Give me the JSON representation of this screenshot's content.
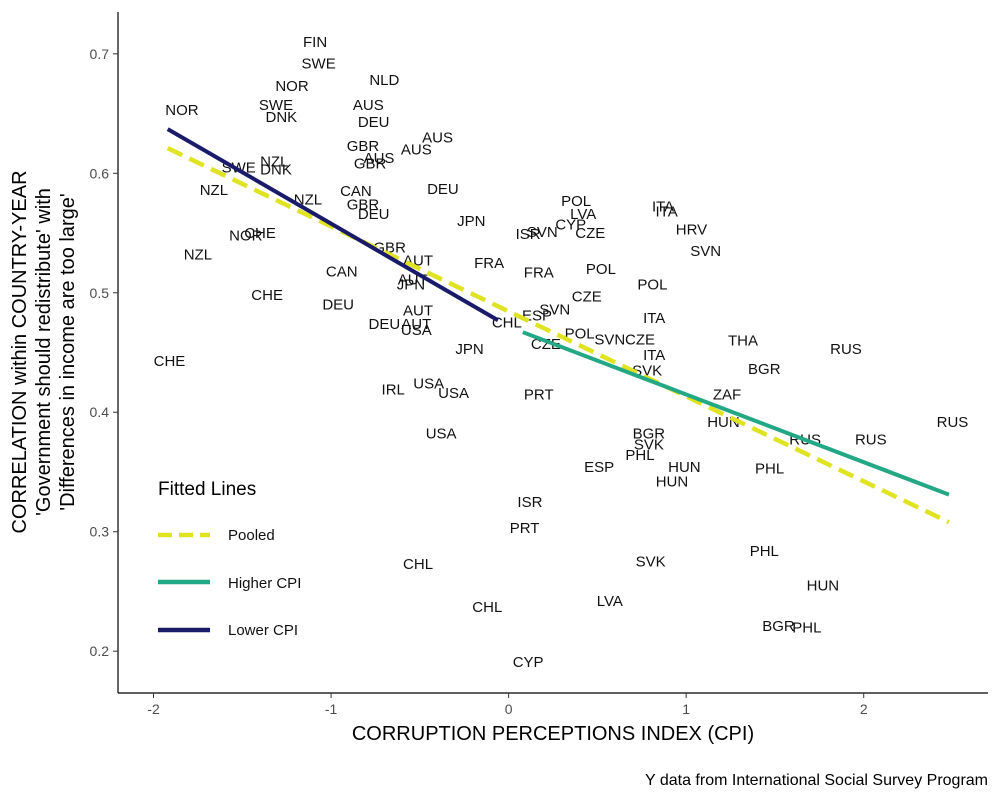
{
  "chart_data": {
    "type": "scatter",
    "xlabel": "CORRUPTION PERCEPTIONS INDEX (CPI)",
    "ylabel_lines": [
      "CORRELATION within COUNTRY-YEAR",
      "'Government should redistribute' with",
      "'Differences in income are too large'"
    ],
    "caption": "Y data from International Social Survey Program",
    "xlim": [
      -2.2,
      2.7
    ],
    "ylim": [
      0.165,
      0.735
    ],
    "x_ticks": [
      -2,
      -1,
      0,
      1,
      2
    ],
    "x_tick_labels": [
      "-2",
      "-1",
      "0",
      "1",
      "2"
    ],
    "y_ticks": [
      0.2,
      0.3,
      0.4,
      0.5,
      0.6,
      0.7
    ],
    "y_tick_labels": [
      "0.2",
      "0.3",
      "0.4",
      "0.5",
      "0.6",
      "0.7"
    ],
    "grid": false,
    "legend": {
      "title": "Fitted Lines",
      "position": "bottom-left",
      "items": [
        {
          "label": "Pooled",
          "color": "#dfe321",
          "dash": true
        },
        {
          "label": "Higher CPI",
          "color": "#22a884",
          "dash": false
        },
        {
          "label": "Lower CPI",
          "color": "#1a1a6b",
          "dash": false
        }
      ]
    },
    "lines": [
      {
        "name": "Pooled",
        "color": "#dfe321",
        "dash": true,
        "x": [
          -1.92,
          2.48
        ],
        "y": [
          0.621,
          0.308
        ]
      },
      {
        "name": "Higher CPI",
        "color": "#22a884",
        "dash": false,
        "x": [
          0.08,
          2.48
        ],
        "y": [
          0.467,
          0.331
        ]
      },
      {
        "name": "Lower CPI",
        "color": "#1a1a6b",
        "dash": false,
        "x": [
          -1.92,
          -0.06
        ],
        "y": [
          0.637,
          0.477
        ]
      }
    ],
    "points": [
      {
        "label": "FIN",
        "x": -1.09,
        "y": 0.71
      },
      {
        "label": "SWE",
        "x": -1.07,
        "y": 0.692
      },
      {
        "label": "NLD",
        "x": -0.7,
        "y": 0.678
      },
      {
        "label": "NOR",
        "x": -1.22,
        "y": 0.673
      },
      {
        "label": "NOR",
        "x": -1.84,
        "y": 0.653
      },
      {
        "label": "SWE",
        "x": -1.31,
        "y": 0.657
      },
      {
        "label": "AUS",
        "x": -0.79,
        "y": 0.657
      },
      {
        "label": "DNK",
        "x": -1.28,
        "y": 0.647
      },
      {
        "label": "DEU",
        "x": -0.76,
        "y": 0.643
      },
      {
        "label": "AUS",
        "x": -0.4,
        "y": 0.63
      },
      {
        "label": "GBR",
        "x": -0.82,
        "y": 0.623
      },
      {
        "label": "AUS",
        "x": -0.52,
        "y": 0.62
      },
      {
        "label": "AUS",
        "x": -0.73,
        "y": 0.613
      },
      {
        "label": "GBR",
        "x": -0.78,
        "y": 0.608
      },
      {
        "label": "NZL",
        "x": -1.32,
        "y": 0.61
      },
      {
        "label": "SWE",
        "x": -1.52,
        "y": 0.605
      },
      {
        "label": "DNK",
        "x": -1.31,
        "y": 0.603
      },
      {
        "label": "DEU",
        "x": -0.37,
        "y": 0.587
      },
      {
        "label": "NZL",
        "x": -1.66,
        "y": 0.586
      },
      {
        "label": "CAN",
        "x": -0.86,
        "y": 0.585
      },
      {
        "label": "NZL",
        "x": -1.13,
        "y": 0.578
      },
      {
        "label": "GBR",
        "x": -0.82,
        "y": 0.574
      },
      {
        "label": "POL",
        "x": 0.38,
        "y": 0.577
      },
      {
        "label": "ITA",
        "x": 0.87,
        "y": 0.572
      },
      {
        "label": "ITA",
        "x": 0.89,
        "y": 0.568
      },
      {
        "label": "DEU",
        "x": -0.76,
        "y": 0.566
      },
      {
        "label": "LVA",
        "x": 0.42,
        "y": 0.566
      },
      {
        "label": "JPN",
        "x": -0.21,
        "y": 0.56
      },
      {
        "label": "CYP",
        "x": 0.35,
        "y": 0.557
      },
      {
        "label": "HRV",
        "x": 1.03,
        "y": 0.553
      },
      {
        "label": "ISR",
        "x": 0.11,
        "y": 0.549
      },
      {
        "label": "SVN",
        "x": 0.19,
        "y": 0.551
      },
      {
        "label": "CZE",
        "x": 0.46,
        "y": 0.55
      },
      {
        "label": "NOR",
        "x": -1.48,
        "y": 0.548
      },
      {
        "label": "CHE",
        "x": -1.4,
        "y": 0.55
      },
      {
        "label": "GBR",
        "x": -0.67,
        "y": 0.538
      },
      {
        "label": "SVN",
        "x": 1.11,
        "y": 0.535
      },
      {
        "label": "NZL",
        "x": -1.75,
        "y": 0.532
      },
      {
        "label": "AUT",
        "x": -0.51,
        "y": 0.527
      },
      {
        "label": "FRA",
        "x": -0.11,
        "y": 0.525
      },
      {
        "label": "CAN",
        "x": -0.94,
        "y": 0.518
      },
      {
        "label": "FRA",
        "x": 0.17,
        "y": 0.517
      },
      {
        "label": "POL",
        "x": 0.52,
        "y": 0.52
      },
      {
        "label": "AUT",
        "x": -0.54,
        "y": 0.511
      },
      {
        "label": "JPN",
        "x": -0.55,
        "y": 0.507
      },
      {
        "label": "POL",
        "x": 0.81,
        "y": 0.507
      },
      {
        "label": "CHE",
        "x": -1.36,
        "y": 0.498
      },
      {
        "label": "CZE",
        "x": 0.44,
        "y": 0.497
      },
      {
        "label": "DEU",
        "x": -0.96,
        "y": 0.49
      },
      {
        "label": "AUT",
        "x": -0.51,
        "y": 0.485
      },
      {
        "label": "SVN",
        "x": 0.26,
        "y": 0.486
      },
      {
        "label": "ESP",
        "x": 0.16,
        "y": 0.481
      },
      {
        "label": "ITA",
        "x": 0.82,
        "y": 0.479
      },
      {
        "label": "CHL",
        "x": -0.01,
        "y": 0.475
      },
      {
        "label": "DEU",
        "x": -0.7,
        "y": 0.474
      },
      {
        "label": "AUT",
        "x": -0.52,
        "y": 0.474
      },
      {
        "label": "USA",
        "x": -0.52,
        "y": 0.469
      },
      {
        "label": "POL",
        "x": 0.4,
        "y": 0.466
      },
      {
        "label": "SVN",
        "x": 0.57,
        "y": 0.461
      },
      {
        "label": "CZE",
        "x": 0.74,
        "y": 0.461
      },
      {
        "label": "THA",
        "x": 1.32,
        "y": 0.46
      },
      {
        "label": "CZE",
        "x": 0.21,
        "y": 0.457
      },
      {
        "label": "JPN",
        "x": -0.22,
        "y": 0.453
      },
      {
        "label": "RUS",
        "x": 1.9,
        "y": 0.453
      },
      {
        "label": "ITA",
        "x": 0.82,
        "y": 0.448
      },
      {
        "label": "CHE",
        "x": -1.91,
        "y": 0.443
      },
      {
        "label": "BGR",
        "x": 1.44,
        "y": 0.436
      },
      {
        "label": "SVK",
        "x": 0.78,
        "y": 0.435
      },
      {
        "label": "USA",
        "x": -0.45,
        "y": 0.424
      },
      {
        "label": "IRL",
        "x": -0.65,
        "y": 0.419
      },
      {
        "label": "USA",
        "x": -0.31,
        "y": 0.416
      },
      {
        "label": "PRT",
        "x": 0.17,
        "y": 0.415
      },
      {
        "label": "ZAF",
        "x": 1.23,
        "y": 0.415
      },
      {
        "label": "RUS",
        "x": 2.5,
        "y": 0.392
      },
      {
        "label": "HUN",
        "x": 1.21,
        "y": 0.392
      },
      {
        "label": "USA",
        "x": -0.38,
        "y": 0.382
      },
      {
        "label": "BGR",
        "x": 0.79,
        "y": 0.382
      },
      {
        "label": "RUS",
        "x": 1.67,
        "y": 0.377
      },
      {
        "label": "RUS",
        "x": 2.04,
        "y": 0.377
      },
      {
        "label": "SVK",
        "x": 0.79,
        "y": 0.373
      },
      {
        "label": "PHL",
        "x": 0.74,
        "y": 0.364
      },
      {
        "label": "HUN",
        "x": 0.99,
        "y": 0.354
      },
      {
        "label": "ESP",
        "x": 0.51,
        "y": 0.354
      },
      {
        "label": "PHL",
        "x": 1.47,
        "y": 0.353
      },
      {
        "label": "HUN",
        "x": 0.92,
        "y": 0.342
      },
      {
        "label": "ISR",
        "x": 0.12,
        "y": 0.325
      },
      {
        "label": "PRT",
        "x": 0.09,
        "y": 0.303
      },
      {
        "label": "PHL",
        "x": 1.44,
        "y": 0.284
      },
      {
        "label": "SVK",
        "x": 0.8,
        "y": 0.275
      },
      {
        "label": "CHL",
        "x": -0.51,
        "y": 0.273
      },
      {
        "label": "HUN",
        "x": 1.77,
        "y": 0.255
      },
      {
        "label": "LVA",
        "x": 0.57,
        "y": 0.242
      },
      {
        "label": "CHL",
        "x": -0.12,
        "y": 0.237
      },
      {
        "label": "BGR",
        "x": 1.52,
        "y": 0.221
      },
      {
        "label": "PHL",
        "x": 1.68,
        "y": 0.22
      },
      {
        "label": "CYP",
        "x": 0.11,
        "y": 0.191
      }
    ]
  }
}
